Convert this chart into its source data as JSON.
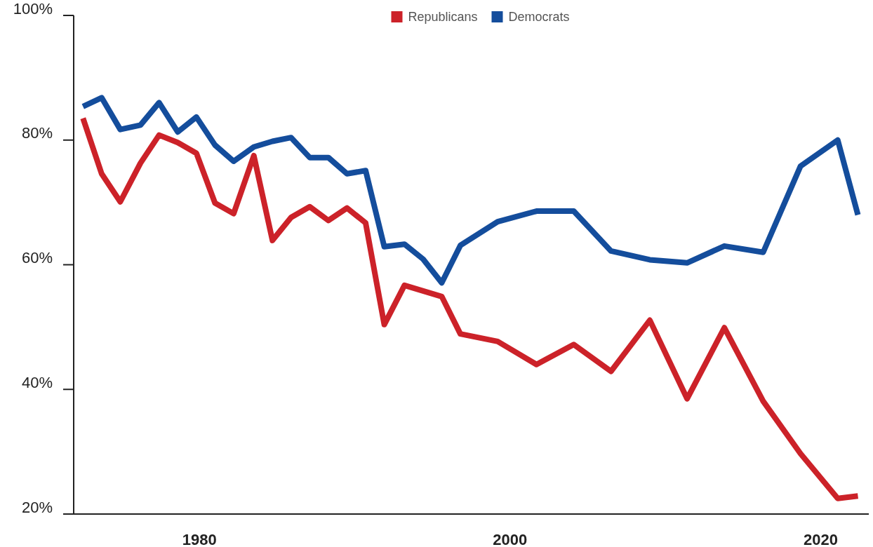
{
  "chart_data": {
    "type": "line",
    "x": [
      1972.5,
      1973.7,
      1974.9,
      1976.2,
      1977.4,
      1978.6,
      1979.8,
      1981.0,
      1982.2,
      1983.5,
      1984.7,
      1985.9,
      1987.1,
      1988.3,
      1989.5,
      1990.7,
      1991.9,
      1993.2,
      1994.4,
      1995.6,
      1996.8,
      1999.2,
      2001.7,
      2004.1,
      2006.5,
      2009.0,
      2011.4,
      2013.8,
      2016.3,
      2018.7,
      2021.1,
      2022.4
    ],
    "series": [
      {
        "name": "Republicans",
        "color": "#cc2229",
        "values": [
          83.5,
          74.6,
          70.1,
          76.3,
          80.8,
          79.6,
          77.9,
          69.9,
          68.2,
          77.5,
          63.9,
          67.6,
          69.3,
          67.1,
          69.1,
          66.7,
          50.4,
          56.7,
          55.8,
          54.9,
          48.9,
          47.7,
          44.0,
          47.2,
          42.9,
          51.1,
          38.5,
          49.9,
          38.1,
          29.7,
          22.5,
          22.9
        ]
      },
      {
        "name": "Democrats",
        "color": "#144d9c",
        "values": [
          85.4,
          86.8,
          81.7,
          82.4,
          86.0,
          81.3,
          83.7,
          79.2,
          76.6,
          78.9,
          79.8,
          80.4,
          77.2,
          77.2,
          74.6,
          75.1,
          62.9,
          63.3,
          60.9,
          57.1,
          63.1,
          66.9,
          68.6,
          68.6,
          62.2,
          60.8,
          60.3,
          63.0,
          62.0,
          75.8,
          80.0,
          68.0
        ]
      }
    ],
    "xlim": [
      1971.9,
      2023.1
    ],
    "xticks": [
      1980,
      2000,
      2020
    ],
    "ylim": [
      20,
      100
    ],
    "yticks": [
      {
        "value": 20,
        "label": "20%"
      },
      {
        "value": 40,
        "label": "40%"
      },
      {
        "value": 60,
        "label": "60%"
      },
      {
        "value": 80,
        "label": "80%"
      },
      {
        "value": 100,
        "label": "100%"
      }
    ],
    "legend": "top",
    "grid": false,
    "marker": "none",
    "line_style": "solid"
  }
}
